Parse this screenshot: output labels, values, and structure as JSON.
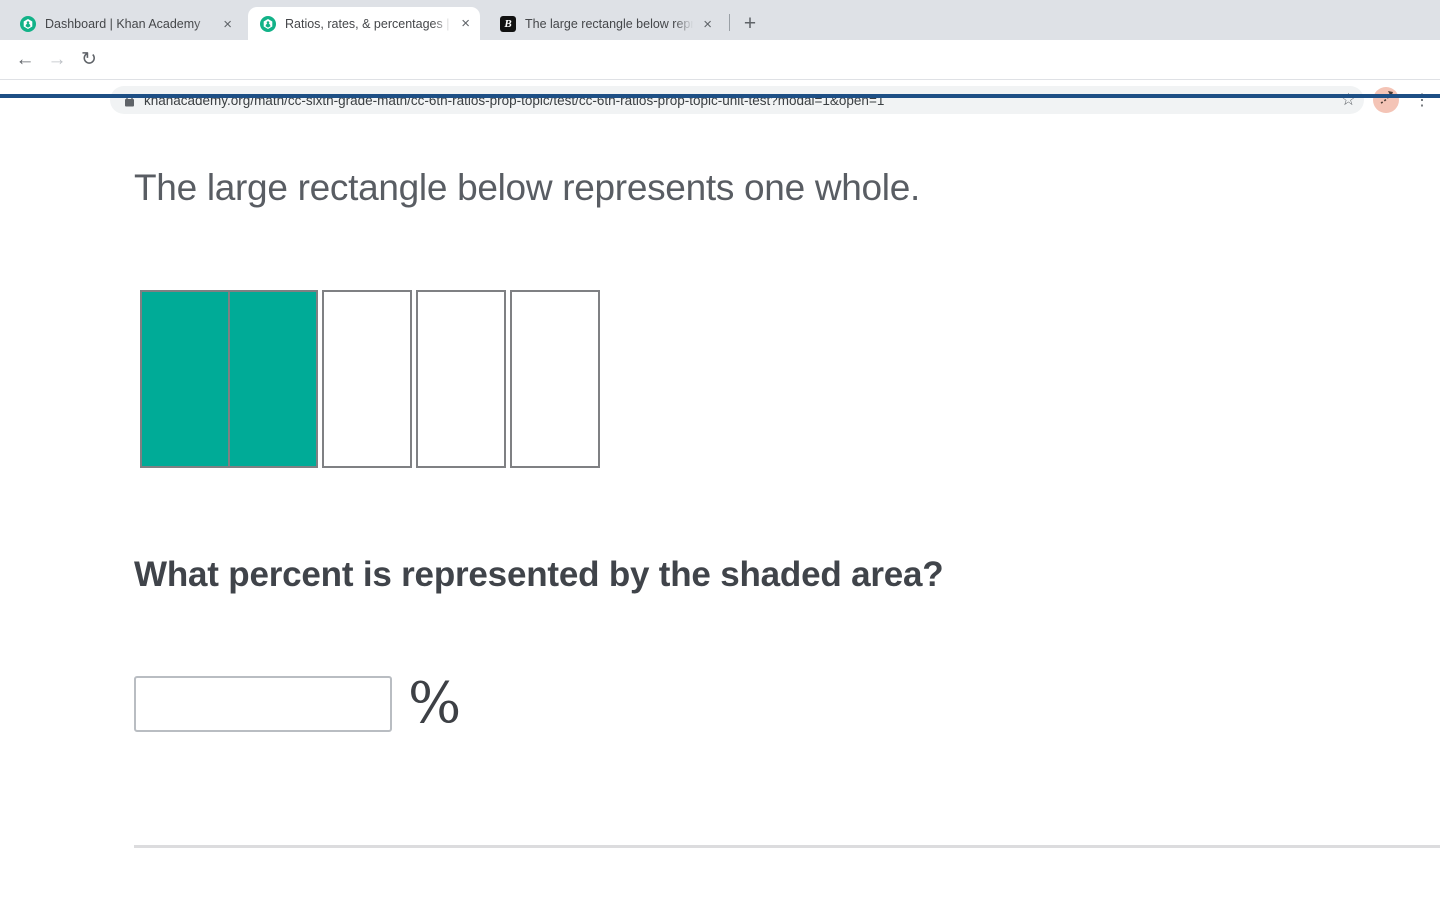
{
  "browser": {
    "tab_bar": {
      "tabs": [
        {
          "title": "Dashboard | Khan Academy"
        },
        {
          "title": "Ratios, rates, & percentages | K"
        },
        {
          "title": "The large rectangle below repre"
        }
      ],
      "close_glyph": "×",
      "new_tab_glyph": "+"
    },
    "toolbar": {
      "back_glyph": "←",
      "forward_glyph": "→",
      "reload_glyph": "↻",
      "url": "khanacademy.org/math/cc-sixth-grade-math/cc-6th-ratios-prop-topic/test/cc-6th-ratios-prop-topic-unit-test?modal=1&open=1",
      "star_glyph": "☆",
      "menu_glyph": "⋮"
    }
  },
  "page": {
    "accent_bar_color": "#1d4f85",
    "prompt": "The large rectangle below represents one whole.",
    "question": "What percent is represented by the shaded area?",
    "answer": {
      "value": "",
      "unit_symbol": "%"
    },
    "diagram": {
      "type": "fraction-bar",
      "total_cells": 5,
      "shaded_cells": 2,
      "shaded_color": "#00ab97",
      "cell_border_color": "#7f8083"
    }
  }
}
